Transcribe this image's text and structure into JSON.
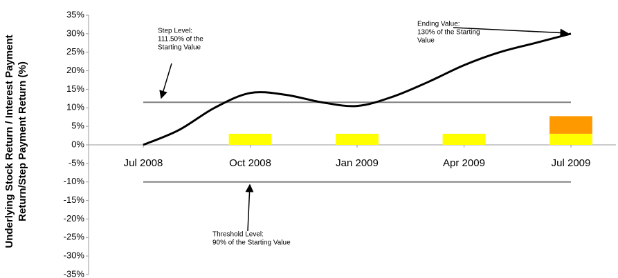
{
  "chart_data": {
    "type": "line",
    "y_label_lines": [
      "Underlying Stock Return / Interest Payment",
      "Return/Step Payment Return (%)"
    ],
    "categories": [
      "Jul 2008",
      null,
      null,
      "Oct 2008",
      null,
      null,
      "Jan 2009",
      null,
      null,
      "Apr 2009",
      null,
      null,
      "Jul 2009"
    ],
    "line": {
      "color": "#000000",
      "values": [
        0,
        4,
        10,
        14,
        13.5,
        11.5,
        10.5,
        13,
        17,
        21.5,
        25,
        27.5,
        30
      ]
    },
    "bars": [
      {
        "color": "#ffff00",
        "values": [
          null,
          null,
          null,
          3,
          null,
          null,
          3,
          null,
          null,
          3,
          null,
          null,
          3
        ]
      },
      {
        "color": "#ff9900",
        "values": [
          null,
          null,
          null,
          null,
          null,
          null,
          null,
          null,
          null,
          null,
          null,
          null,
          4.75
        ]
      }
    ],
    "reference_lines": [
      {
        "value": 11.5,
        "color": "#808080",
        "annotation": [
          "Step Level:",
          "111.50% of the",
          "Starting Value"
        ]
      },
      {
        "value": -10,
        "color": "#808080",
        "annotation": [
          "Threshold Level:",
          "90% of the Starting Value"
        ]
      }
    ],
    "end_annotation": [
      "Ending Value:",
      "130% of the Starting",
      "Value"
    ],
    "ylim": [
      -35,
      35
    ],
    "yticks": [
      {
        "value": 35,
        "label": "35%"
      },
      {
        "value": 30,
        "label": "30%"
      },
      {
        "value": 25,
        "label": "25%"
      },
      {
        "value": 20,
        "label": "20%"
      },
      {
        "value": 15,
        "label": "15%"
      },
      {
        "value": 10,
        "label": "10%"
      },
      {
        "value": 5,
        "label": "5%"
      },
      {
        "value": 0,
        "label": "0%"
      },
      {
        "value": -5,
        "label": "-5%"
      },
      {
        "value": -10,
        "label": "-10%"
      },
      {
        "value": -15,
        "label": "-15%"
      },
      {
        "value": -20,
        "label": "-20%"
      },
      {
        "value": -25,
        "label": "-25%"
      },
      {
        "value": -30,
        "label": "-30%"
      },
      {
        "value": -35,
        "label": "-35%"
      }
    ]
  }
}
